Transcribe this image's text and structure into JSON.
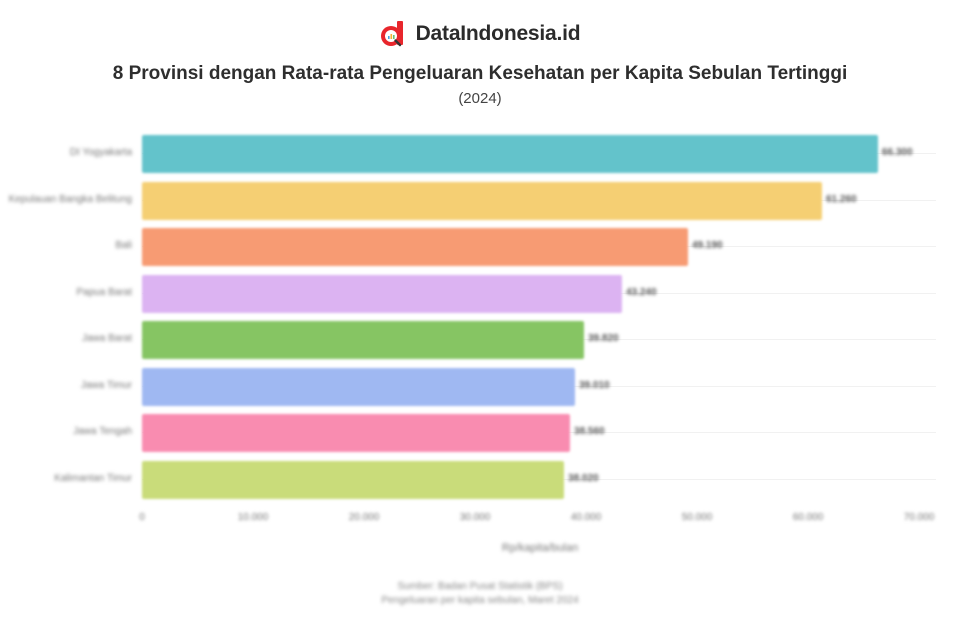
{
  "brand": {
    "name": "DataIndonesia.id",
    "logo_color": "#e8262c",
    "logo_icon": "magnifier-chart-icon"
  },
  "header": {
    "title": "8 Provinsi dengan Rata-rata Pengeluaran Kesehatan per Kapita Sebulan Tertinggi",
    "subtitle": "(2024)"
  },
  "axis": {
    "xlabel": "Rp/kapita/bulan",
    "ticks": [
      "0",
      "10.000",
      "20.000",
      "30.000",
      "40.000",
      "50.000",
      "60.000",
      "70.000"
    ]
  },
  "footer": {
    "line1": "Sumber: Badan Pusat Statistik (BPS)",
    "line2": "Pengeluaran per kapita sebulan, Maret 2024"
  },
  "chart_data": {
    "type": "bar",
    "orientation": "horizontal",
    "title": "8 Provinsi dengan Rata-rata Pengeluaran Kesehatan per Kapita Sebulan Tertinggi",
    "subtitle": "(2024)",
    "xlabel": "Rp/kapita/bulan",
    "ylabel": "",
    "xlim": [
      0,
      70000
    ],
    "grid": false,
    "legend": "none",
    "categories": [
      "DI Yogyakarta",
      "Kepulauan Bangka Belitung",
      "Bali",
      "Papua Barat",
      "Jawa Barat",
      "Jawa Timur",
      "Jawa Tengah",
      "Kalimantan Timur"
    ],
    "values": [
      66300,
      61260,
      49190,
      43240,
      39820,
      39010,
      38560,
      38020
    ],
    "value_labels": [
      "66.300",
      "61.260",
      "49.190",
      "43.240",
      "39.820",
      "39.010",
      "38.560",
      "38.020"
    ],
    "colors": [
      "#63c3cb",
      "#f5cf73",
      "#f79b73",
      "#dcb3f2",
      "#86c563",
      "#9fb8f2",
      "#f98cb0",
      "#c9dc7a"
    ]
  }
}
